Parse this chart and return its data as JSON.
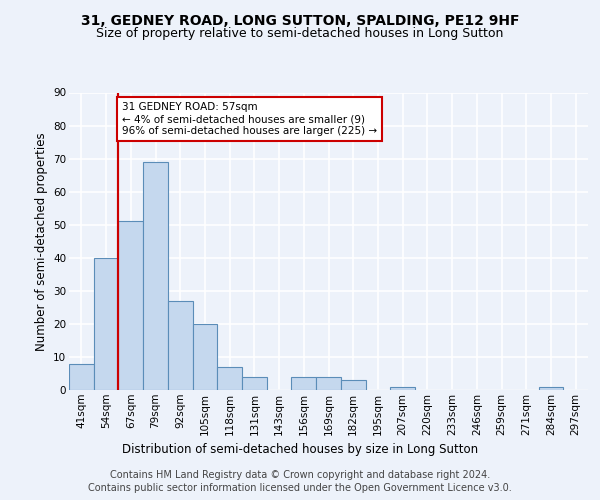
{
  "title_line1": "31, GEDNEY ROAD, LONG SUTTON, SPALDING, PE12 9HF",
  "title_line2": "Size of property relative to semi-detached houses in Long Sutton",
  "xlabel": "Distribution of semi-detached houses by size in Long Sutton",
  "ylabel": "Number of semi-detached properties",
  "categories": [
    "41sqm",
    "54sqm",
    "67sqm",
    "79sqm",
    "92sqm",
    "105sqm",
    "118sqm",
    "131sqm",
    "143sqm",
    "156sqm",
    "169sqm",
    "182sqm",
    "195sqm",
    "207sqm",
    "220sqm",
    "233sqm",
    "246sqm",
    "259sqm",
    "271sqm",
    "284sqm",
    "297sqm"
  ],
  "values": [
    8,
    40,
    51,
    69,
    27,
    20,
    7,
    4,
    0,
    4,
    4,
    3,
    0,
    1,
    0,
    0,
    0,
    0,
    0,
    1,
    0
  ],
  "bar_color": "#c5d8ee",
  "bar_edge_color": "#5b8db8",
  "red_line_after_index": 1,
  "highlight_color": "#cc0000",
  "annotation_text": "31 GEDNEY ROAD: 57sqm\n← 4% of semi-detached houses are smaller (9)\n96% of semi-detached houses are larger (225) →",
  "annotation_box_color": "#ffffff",
  "annotation_box_edge": "#cc0000",
  "ylim": [
    0,
    90
  ],
  "yticks": [
    0,
    10,
    20,
    30,
    40,
    50,
    60,
    70,
    80,
    90
  ],
  "footer_line1": "Contains HM Land Registry data © Crown copyright and database right 2024.",
  "footer_line2": "Contains public sector information licensed under the Open Government Licence v3.0.",
  "bg_color": "#edf2fa",
  "grid_color": "#ffffff",
  "title_fontsize": 10,
  "subtitle_fontsize": 9,
  "axis_label_fontsize": 8.5,
  "tick_fontsize": 7.5,
  "footer_fontsize": 7
}
